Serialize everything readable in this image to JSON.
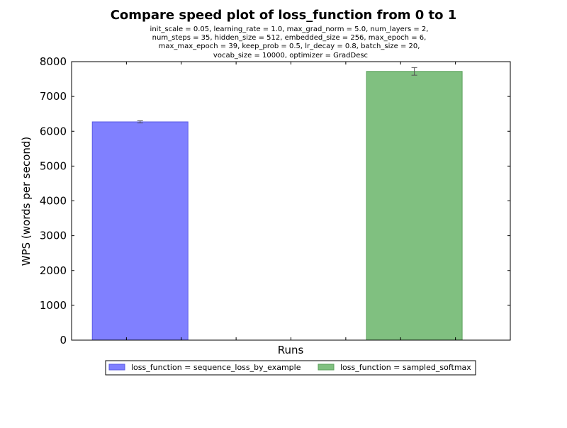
{
  "chart_data": {
    "type": "bar",
    "title": "Compare speed plot of loss_function from 0 to 1",
    "subtitle_lines": [
      "init_scale = 0.05, learning_rate = 1.0, max_grad_norm = 5.0, num_layers = 2,",
      "num_steps = 35, hidden_size = 512, embedded_size = 256, max_epoch = 6,",
      "max_max_epoch = 39, keep_prob = 0.5, lr_decay = 0.8, batch_size = 20,",
      "vocab_size = 10000, optimizer = GradDesc"
    ],
    "xlabel": "Runs",
    "ylabel": "WPS (words per second)",
    "ylim": [
      0,
      8000
    ],
    "yticks": [
      "0",
      "1000",
      "2000",
      "3000",
      "4000",
      "5000",
      "6000",
      "7000",
      "8000"
    ],
    "grid": false,
    "legend_position": "below plot, center",
    "series": [
      {
        "name": "loss_function = sequence_loss_by_example",
        "value": 6270,
        "error": 30,
        "color": "#8080ff",
        "edge_color": "#5a5ae6"
      },
      {
        "name": "loss_function = sampled_softmax",
        "value": 7720,
        "error": 110,
        "color": "#80c080",
        "edge_color": "#5aa05a"
      }
    ]
  }
}
